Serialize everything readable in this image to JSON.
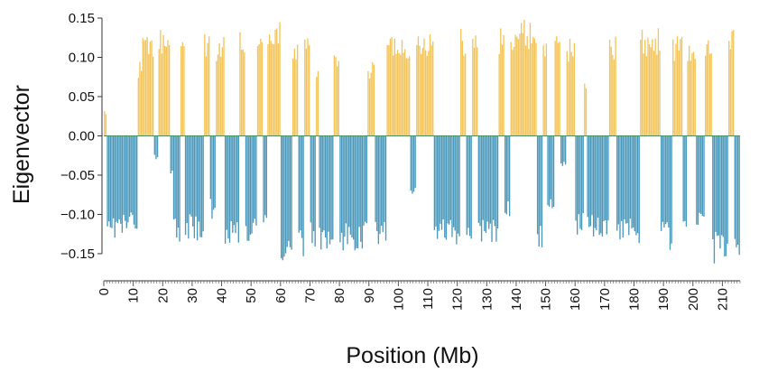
{
  "chart_data": {
    "type": "bar",
    "title": "",
    "xlabel": "Position (Mb)",
    "ylabel": "Eigenvector",
    "xlim": [
      0,
      216
    ],
    "ylim": [
      -0.165,
      0.15
    ],
    "y_ticks": [
      0.15,
      0.1,
      0.05,
      0.0,
      -0.05,
      -0.1,
      -0.15
    ],
    "y_tick_labels": [
      "0.15",
      "0.10",
      "0.05",
      "0.00",
      "−0.05",
      "−0.10",
      "−0.15"
    ],
    "x_ticks": [
      0,
      10,
      20,
      30,
      40,
      50,
      60,
      70,
      80,
      90,
      100,
      110,
      120,
      130,
      140,
      150,
      160,
      170,
      180,
      190,
      200,
      210
    ],
    "x_tick_labels": [
      "0",
      "10",
      "20",
      "30",
      "40",
      "50",
      "60",
      "70",
      "80",
      "90",
      "100",
      "110",
      "120",
      "130",
      "140",
      "150",
      "160",
      "170",
      "180",
      "190",
      "200",
      "210"
    ],
    "x_minor_step": 1,
    "zero_line": true,
    "grid": false,
    "colors": {
      "positive": "#f2c45a",
      "negative": "#4a98bb",
      "zero_line": "#4d8f5e"
    },
    "bin_size_mb": 0.5,
    "segments": [
      {
        "x": [
          0,
          1.0
        ],
        "v": 0.03
      },
      {
        "x": [
          1.0,
          11.5
        ],
        "v": -0.123
      },
      {
        "x": [
          11.5,
          13.0
        ],
        "v": 0.09
      },
      {
        "x": [
          13.0,
          17.0
        ],
        "v": 0.12
      },
      {
        "x": [
          17.0,
          18.5
        ],
        "v": -0.03
      },
      {
        "x": [
          18.5,
          22.5
        ],
        "v": 0.13
      },
      {
        "x": [
          22.5,
          23.5
        ],
        "v": -0.05
      },
      {
        "x": [
          23.5,
          26.0
        ],
        "v": -0.13
      },
      {
        "x": [
          26.0,
          27.5
        ],
        "v": 0.12
      },
      {
        "x": [
          27.5,
          34.0
        ],
        "v": -0.128
      },
      {
        "x": [
          34.0,
          36.0
        ],
        "v": 0.125
      },
      {
        "x": [
          36.0,
          38.0
        ],
        "v": -0.1
      },
      {
        "x": [
          38.0,
          41.0
        ],
        "v": 0.12
      },
      {
        "x": [
          41.0,
          46.0
        ],
        "v": -0.13
      },
      {
        "x": [
          46.0,
          48.0
        ],
        "v": 0.125
      },
      {
        "x": [
          48.0,
          52.0
        ],
        "v": -0.13
      },
      {
        "x": [
          52.0,
          54.0
        ],
        "v": 0.12
      },
      {
        "x": [
          54.0,
          55.5
        ],
        "v": -0.12
      },
      {
        "x": [
          55.5,
          60.0
        ],
        "v": 0.14
      },
      {
        "x": [
          60.0,
          62.0
        ],
        "v": -0.155
      },
      {
        "x": [
          62.0,
          64.0
        ],
        "v": -0.163
      },
      {
        "x": [
          64.0,
          66.0
        ],
        "v": 0.11
      },
      {
        "x": [
          66.0,
          68.0
        ],
        "v": -0.145
      },
      {
        "x": [
          68.0,
          70.0
        ],
        "v": 0.12
      },
      {
        "x": [
          70.0,
          72.0
        ],
        "v": -0.14
      },
      {
        "x": [
          72.0,
          73.0
        ],
        "v": 0.09
      },
      {
        "x": [
          73.0,
          78.0
        ],
        "v": -0.14
      },
      {
        "x": [
          78.0,
          80.0
        ],
        "v": 0.1
      },
      {
        "x": [
          80.0,
          89.5
        ],
        "v": -0.14
      },
      {
        "x": [
          89.5,
          91.0
        ],
        "v": 0.08
      },
      {
        "x": [
          91.0,
          92.0
        ],
        "v": 0.11
      },
      {
        "x": [
          92.0,
          96.0
        ],
        "v": -0.13
      },
      {
        "x": [
          96.0,
          104.0
        ],
        "v": 0.125
      },
      {
        "x": [
          104.0,
          106.0
        ],
        "v": -0.07
      },
      {
        "x": [
          106.0,
          112.0
        ],
        "v": 0.13
      },
      {
        "x": [
          112.0,
          121.0
        ],
        "v": -0.135
      },
      {
        "x": [
          121.0,
          123.0
        ],
        "v": 0.13
      },
      {
        "x": [
          123.0,
          125.0
        ],
        "v": -0.13
      },
      {
        "x": [
          125.0,
          127.0
        ],
        "v": 0.13
      },
      {
        "x": [
          127.0,
          134.0
        ],
        "v": -0.13
      },
      {
        "x": [
          134.0,
          136.0
        ],
        "v": 0.13
      },
      {
        "x": [
          136.0,
          138.0
        ],
        "v": -0.1
      },
      {
        "x": [
          138.0,
          147.0
        ],
        "v": 0.14
      },
      {
        "x": [
          147.0,
          149.0
        ],
        "v": -0.14
      },
      {
        "x": [
          149.0,
          150.5
        ],
        "v": 0.12
      },
      {
        "x": [
          150.5,
          153.0
        ],
        "v": -0.1
      },
      {
        "x": [
          153.0,
          155.0
        ],
        "v": 0.12
      },
      {
        "x": [
          155.0,
          157.0
        ],
        "v": -0.04
      },
      {
        "x": [
          157.0,
          160.0
        ],
        "v": 0.12
      },
      {
        "x": [
          160.0,
          163.0
        ],
        "v": -0.12
      },
      {
        "x": [
          163.0,
          164.0
        ],
        "v": 0.07
      },
      {
        "x": [
          164.0,
          171.5
        ],
        "v": -0.125
      },
      {
        "x": [
          171.5,
          174.0
        ],
        "v": 0.12
      },
      {
        "x": [
          174.0,
          182.0
        ],
        "v": -0.135
      },
      {
        "x": [
          182.0,
          189.0
        ],
        "v": 0.13
      },
      {
        "x": [
          189.0,
          193.0
        ],
        "v": -0.14
      },
      {
        "x": [
          193.0,
          196.5
        ],
        "v": 0.12
      },
      {
        "x": [
          196.5,
          198.0
        ],
        "v": -0.135
      },
      {
        "x": [
          198.0,
          201.0
        ],
        "v": 0.11
      },
      {
        "x": [
          201.0,
          204.0
        ],
        "v": -0.125
      },
      {
        "x": [
          204.0,
          206.5
        ],
        "v": 0.13
      },
      {
        "x": [
          206.5,
          212.0
        ],
        "v": -0.155
      },
      {
        "x": [
          212.0,
          214.0
        ],
        "v": 0.13
      },
      {
        "x": [
          214.0,
          216.0
        ],
        "v": -0.15
      }
    ]
  }
}
